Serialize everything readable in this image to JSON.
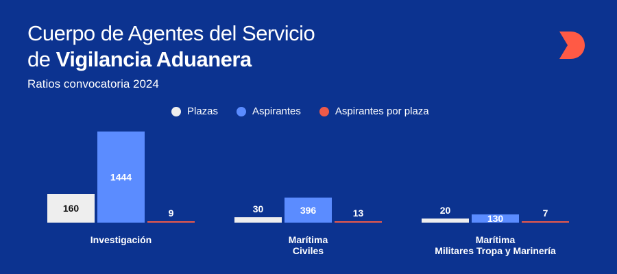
{
  "header": {
    "title_line1": "Cuerpo de Agentes del Servicio",
    "title_line2_prefix": "de ",
    "title_line2_bold": "Vigilancia Aduanera",
    "subtitle": "Ratios convocatoria 2024"
  },
  "logo_icon": "d-logo-icon",
  "colors": {
    "background": "#0c3390",
    "plazas": "#eeeeee",
    "aspirantes": "#5b8cff",
    "ratio": "#ee5a4a",
    "subtitle": "#ff6a55"
  },
  "chart_data": {
    "type": "bar",
    "categories": [
      [
        "Investigación"
      ],
      [
        "Marítima",
        "Civiles"
      ],
      [
        "Marítima",
        "Militares Tropa y Marinería"
      ]
    ],
    "series": [
      {
        "name": "Plazas",
        "values": [
          160,
          30,
          20
        ]
      },
      {
        "name": "Aspirantes",
        "values": [
          1444,
          396,
          130
        ]
      },
      {
        "name": "Aspirantes por plaza",
        "values": [
          9,
          13,
          7
        ]
      }
    ],
    "title": "Cuerpo de Agentes del Servicio de Vigilancia Aduanera",
    "subtitle": "Ratios convocatoria 2024",
    "legend_position": "top-center",
    "grid": false
  }
}
